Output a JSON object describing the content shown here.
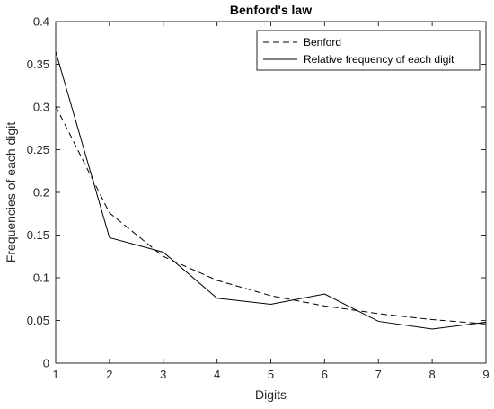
{
  "chart_data": {
    "type": "line",
    "title": "Benford's law",
    "xlabel": "Digits",
    "ylabel": "Frequencies of each digit",
    "xlim": [
      1,
      9
    ],
    "ylim": [
      0,
      0.4
    ],
    "x_ticks": [
      "1",
      "2",
      "3",
      "4",
      "5",
      "6",
      "7",
      "8",
      "9"
    ],
    "y_ticks": [
      "0",
      "0.05",
      "0.1",
      "0.15",
      "0.2",
      "0.25",
      "0.3",
      "0.35",
      "0.4"
    ],
    "x": [
      1,
      2,
      3,
      4,
      5,
      6,
      7,
      8,
      9
    ],
    "grid": false,
    "legend_position": "top-right",
    "series": [
      {
        "name": "Benford",
        "style": "dashed",
        "color": "#000000",
        "values": [
          0.301,
          0.176,
          0.125,
          0.097,
          0.079,
          0.067,
          0.058,
          0.051,
          0.046
        ]
      },
      {
        "name": "Relative frequency of each digit",
        "style": "solid",
        "color": "#000000",
        "values": [
          0.365,
          0.147,
          0.13,
          0.076,
          0.069,
          0.081,
          0.049,
          0.04,
          0.048
        ]
      }
    ]
  }
}
